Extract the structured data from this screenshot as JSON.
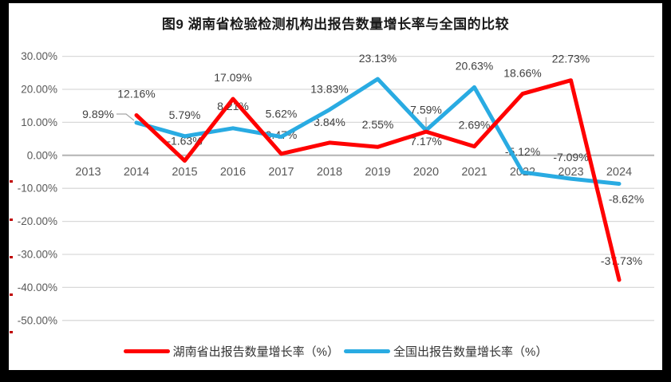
{
  "window": {
    "frame_color": "#000000",
    "background": "#FFFFFF"
  },
  "chart_data": {
    "type": "line",
    "title": "图9 湖南省检验检测机构出报告数量增长率与全国的比较",
    "categories": [
      "2013",
      "2014",
      "2015",
      "2016",
      "2017",
      "2018",
      "2019",
      "2020",
      "2021",
      "2022",
      "2023",
      "2024"
    ],
    "series": [
      {
        "name": "湖南省出报告数量增长率（%）",
        "color": "#FF0000",
        "values": [
          null,
          12.16,
          -1.63,
          17.09,
          0.47,
          3.84,
          2.55,
          7.17,
          2.69,
          18.66,
          22.73,
          -37.73
        ],
        "labels": [
          null,
          "12.16%",
          "-1.63%",
          "17.09%",
          "0.47%",
          "3.84%",
          "2.55%",
          "7.17%",
          "2.69%",
          "18.66%",
          "22.73%",
          "-37.73%"
        ],
        "label_offsets": [
          null,
          [
            0,
            -22
          ],
          [
            0,
            -20
          ],
          [
            0,
            -22
          ],
          [
            0,
            -19
          ],
          [
            0,
            -21
          ],
          [
            0,
            -23
          ],
          [
            0,
            17
          ],
          [
            0,
            -22
          ],
          [
            0,
            -21
          ],
          [
            0,
            -22
          ],
          [
            3,
            -19
          ]
        ]
      },
      {
        "name": "全国出报告数量增长率（%）",
        "color": "#29ABE2",
        "values": [
          null,
          9.89,
          5.79,
          8.21,
          5.62,
          13.83,
          23.13,
          7.59,
          20.63,
          -5.12,
          -7.09,
          -8.62
        ],
        "labels": [
          null,
          "9.89%",
          "5.79%",
          "8.21%",
          "5.62%",
          "13.83%",
          "23.13%",
          "7.59%",
          "20.63%",
          "-5.12%",
          "-7.09%",
          "-8.62%"
        ],
        "label_offsets": [
          null,
          [
            -48,
            -6
          ],
          [
            0,
            -22
          ],
          [
            0,
            -23
          ],
          [
            0,
            -24
          ],
          [
            0,
            -21
          ],
          [
            0,
            -21
          ],
          [
            0,
            -21
          ],
          [
            0,
            -22
          ],
          [
            0,
            -21
          ],
          [
            0,
            -22
          ],
          [
            9,
            24
          ]
        ]
      }
    ],
    "ylim": [
      -50,
      30
    ],
    "ytick_step": 10,
    "ytick_labels": [
      "30.00%",
      "20.00%",
      "10.00%",
      "0.00%",
      "-10.00%",
      "-20.00%",
      "-30.00%",
      "-40.00%",
      "-50.00%"
    ],
    "grid": true,
    "legend_position": "bottom",
    "data_labels_on": true,
    "leader_lines": [
      {
        "series": 1,
        "index": 1,
        "points": [
          [
            146,
            143
          ],
          [
            158,
            143
          ],
          [
            168,
            151
          ]
        ]
      },
      {
        "series": 1,
        "index": 7,
        "points": [
          [
            534,
            147
          ],
          [
            534,
            161
          ]
        ]
      }
    ],
    "style": {
      "grid_color": "#D9D9D9",
      "axis_color": "#B3B3B3",
      "tick_label_color": "#595959",
      "data_label_color": "#404040",
      "leader_color": "#A6A6A6",
      "line_width": 5
    }
  },
  "artifacts": {
    "left_edge_dash_color": "#C00000"
  }
}
